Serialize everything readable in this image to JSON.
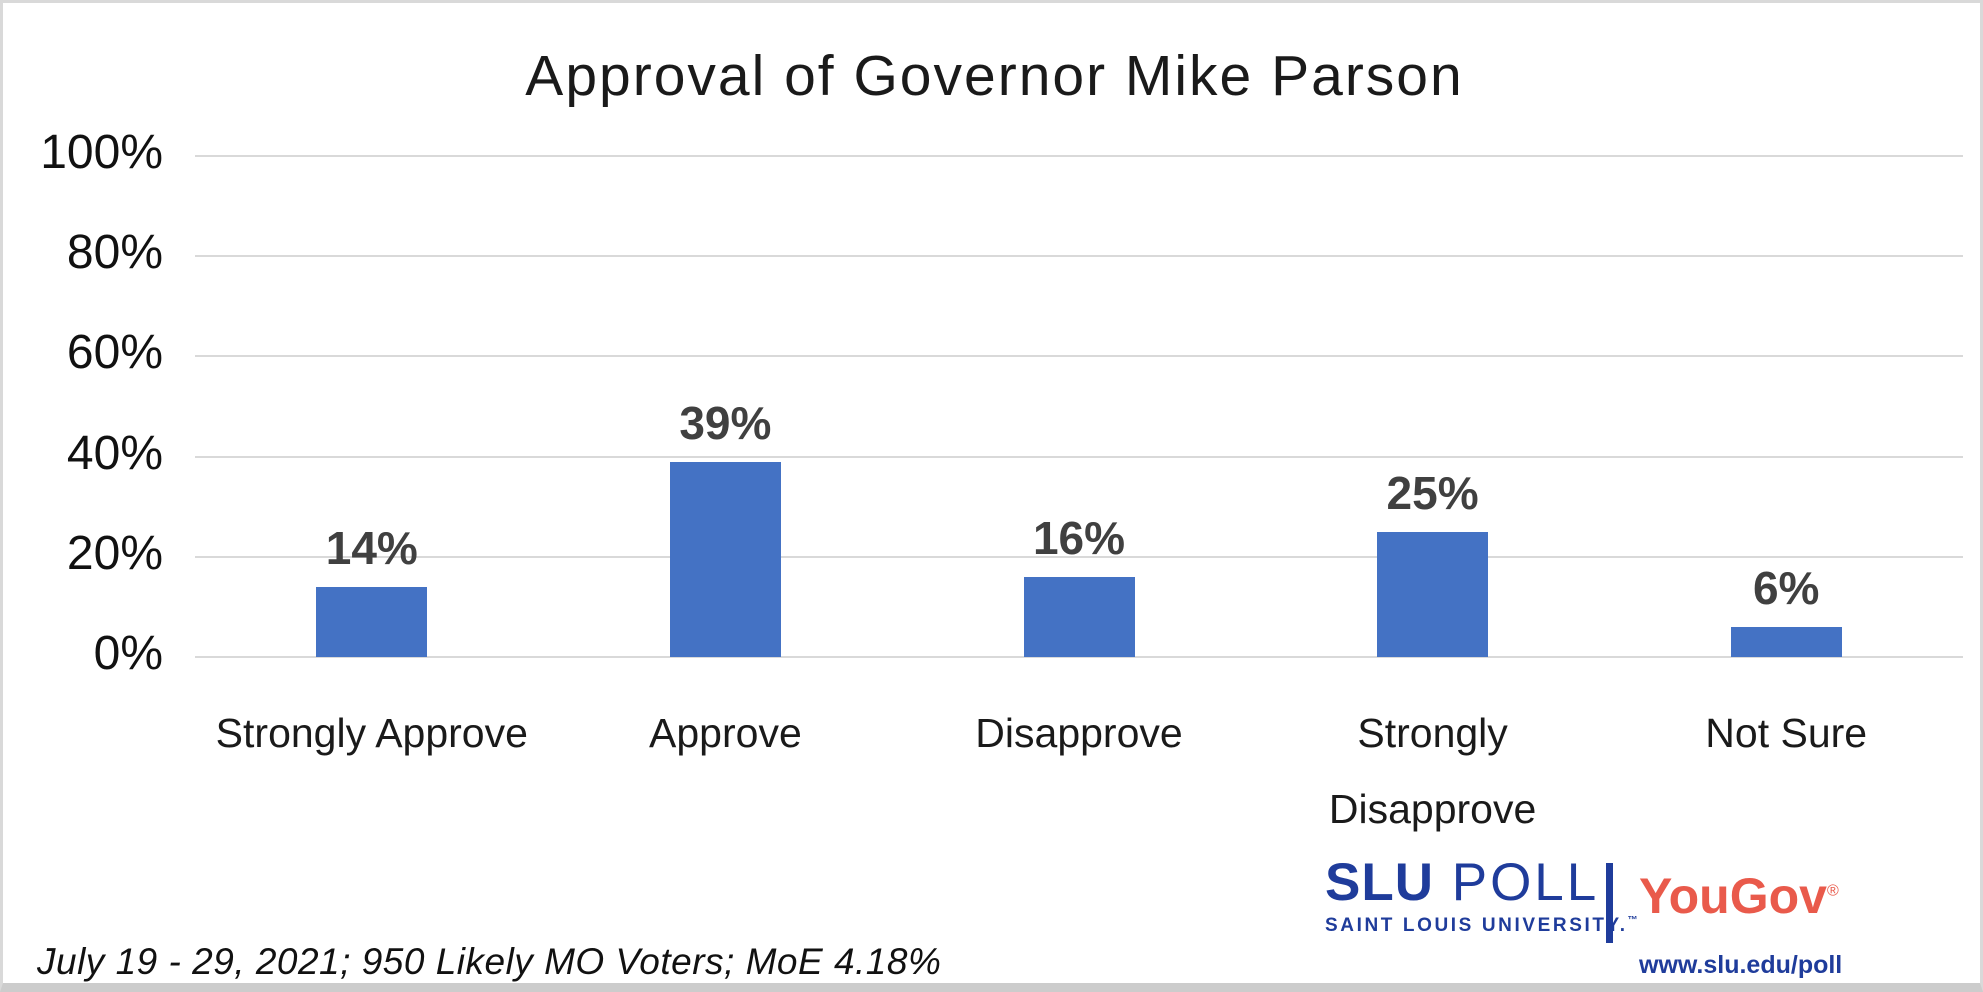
{
  "title": "Approval of Governor Mike Parson",
  "footnote": "July 19 - 29, 2021; 950 Likely MO Voters; MoE 4.18%",
  "chart_data": {
    "type": "bar",
    "title": "Approval of Governor Mike Parson",
    "categories": [
      "Strongly Approve",
      "Approve",
      "Disapprove",
      "Strongly Disapprove",
      "Not Sure"
    ],
    "values": [
      14,
      39,
      16,
      25,
      6
    ],
    "data_labels": [
      "14%",
      "39%",
      "16%",
      "25%",
      "6%"
    ],
    "xlabel": "",
    "ylabel": "",
    "ylim": [
      0,
      100
    ],
    "ytick_values": [
      0,
      20,
      40,
      60,
      80,
      100
    ],
    "ytick_labels": [
      "0%",
      "20%",
      "40%",
      "60%",
      "80%",
      "100%"
    ],
    "grid": true,
    "legend_position": "none",
    "bar_color": "#4472C4",
    "data_label_color": "#404040",
    "gridline_color": "#D9D9D9"
  },
  "branding": {
    "slu_poll": {
      "name_bold": "SLU",
      "name_light": " POLL",
      "subtitle": "SAINT LOUIS UNIVERSITY.",
      "trademark": "™",
      "color": "#1F3C9B"
    },
    "yougov": {
      "name": "YouGov",
      "registered": "®",
      "color": "#E95A4B"
    },
    "url": "www.slu.edu/poll"
  }
}
